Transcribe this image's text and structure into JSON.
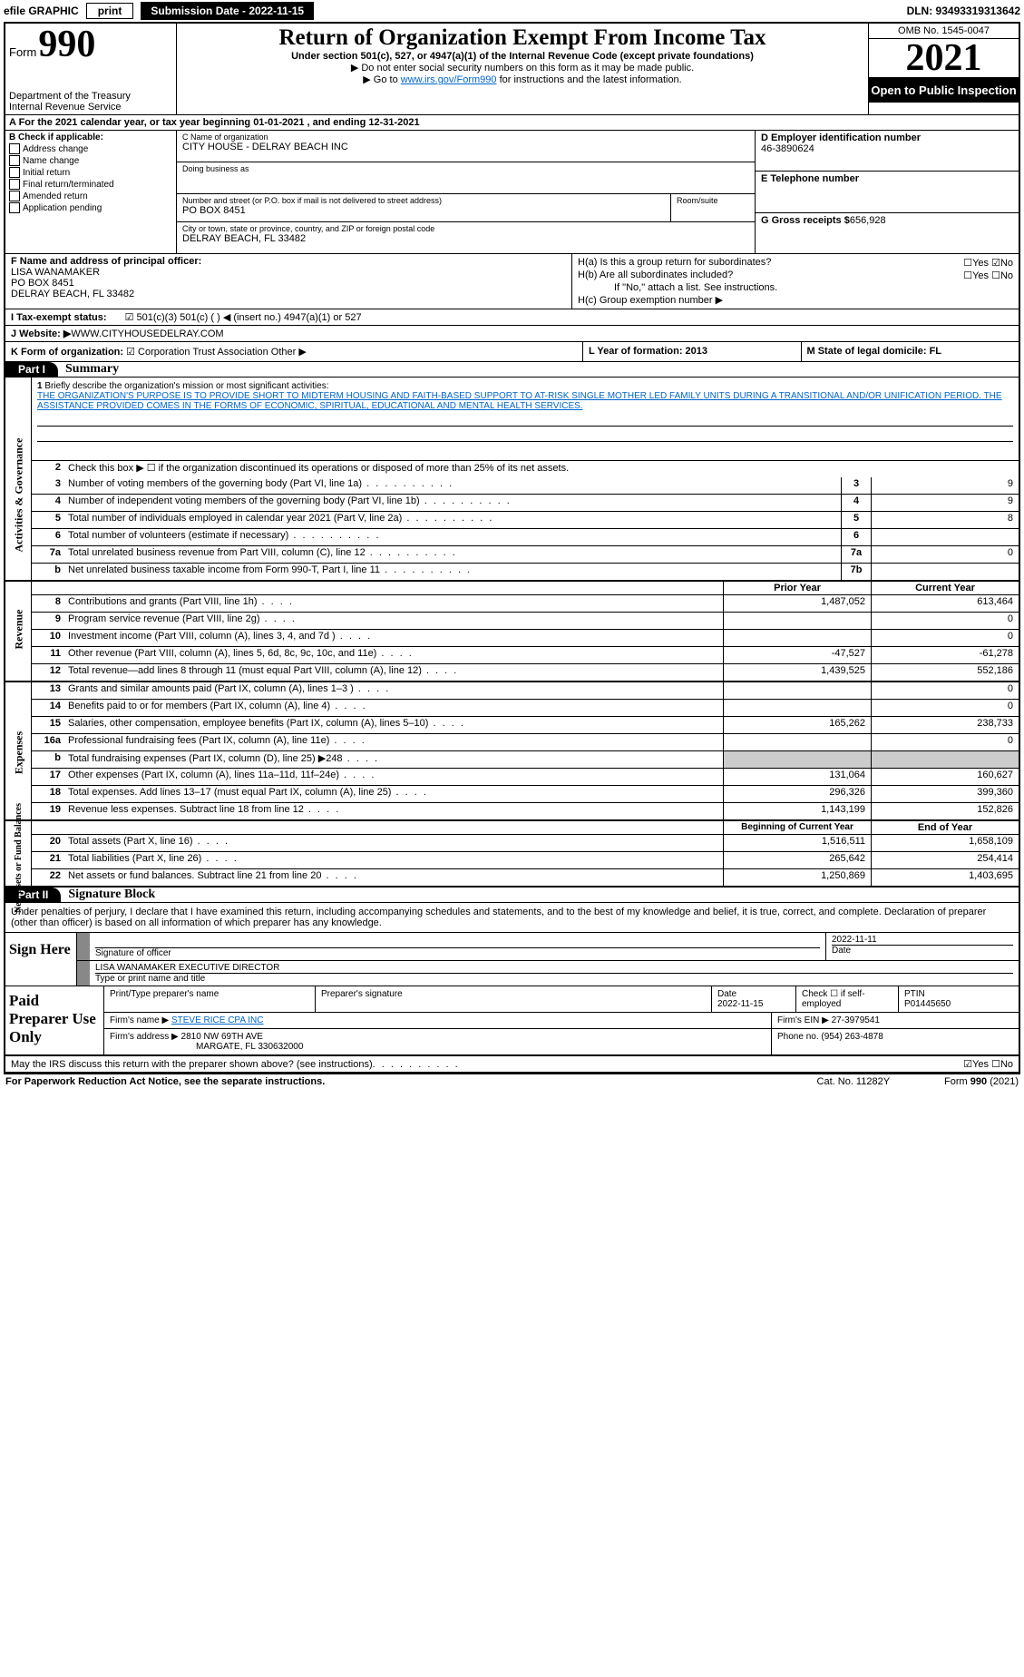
{
  "topbar": {
    "efile": "efile GRAPHIC",
    "print": "print",
    "submission": "Submission Date - 2022-11-15",
    "dln": "DLN: 93493319313642"
  },
  "header": {
    "form_word": "Form",
    "form_num": "990",
    "dept": "Department of the Treasury",
    "irs": "Internal Revenue Service",
    "title": "Return of Organization Exempt From Income Tax",
    "sub": "Under section 501(c), 527, or 4947(a)(1) of the Internal Revenue Code (except private foundations)",
    "note1": "▶ Do not enter social security numbers on this form as it may be made public.",
    "note2_pre": "▶ Go to ",
    "note2_link": "www.irs.gov/Form990",
    "note2_post": " for instructions and the latest information.",
    "omb": "OMB No. 1545-0047",
    "year": "2021",
    "open": "Open to Public Inspection"
  },
  "row_a": "A For the 2021 calendar year, or tax year beginning 01-01-2021     , and ending 12-31-2021",
  "col_b": {
    "header": "B Check if applicable:",
    "items": [
      "Address change",
      "Name change",
      "Initial return",
      "Final return/terminated",
      "Amended return",
      "Application pending"
    ]
  },
  "col_c": {
    "c_label": "C Name of organization",
    "c_val": "CITY HOUSE - DELRAY BEACH INC",
    "dba_label": "Doing business as",
    "addr_label": "Number and street (or P.O. box if mail is not delivered to street address)",
    "addr_val": "PO BOX 8451",
    "room_label": "Room/suite",
    "city_label": "City or town, state or province, country, and ZIP or foreign postal code",
    "city_val": "DELRAY BEACH, FL  33482"
  },
  "col_d": {
    "d_label": "D Employer identification number",
    "d_val": "46-3890624",
    "e_label": "E Telephone number",
    "g_label": "G Gross receipts $",
    "g_val": "656,928"
  },
  "col_f": {
    "label": "F  Name and address of principal officer:",
    "name": "LISA WANAMAKER",
    "addr1": "PO BOX 8451",
    "addr2": "DELRAY BEACH, FL  33482"
  },
  "col_h": {
    "ha": "H(a)  Is this a group return for subordinates?",
    "hb": "H(b)  Are all subordinates included?",
    "hb_note": "If \"No,\" attach a list. See instructions.",
    "hc": "H(c)  Group exemption number ▶",
    "yes": "Yes",
    "no": "No"
  },
  "row_i": {
    "label": "I     Tax-exempt status:",
    "opts": "501(c)(3)       501(c) (   ) ◀ (insert no.)        4947(a)(1) or        527"
  },
  "row_j": {
    "label": "J    Website: ▶",
    "val": " WWW.CITYHOUSEDELRAY.COM"
  },
  "row_k": {
    "label": "K Form of organization:",
    "opts": " Corporation     Trust     Association     Other ▶",
    "l": "L Year of formation: 2013",
    "m": "M State of legal domicile: FL"
  },
  "part1": {
    "label": "Part I",
    "title": "Summary"
  },
  "mission": {
    "num": "1",
    "label": "Briefly describe the organization's mission or most significant activities:",
    "text": "THE ORGANIZATION'S PURPOSE IS TO PROVIDE SHORT TO MIDTERM HOUSING AND FAITH-BASED SUPPORT TO AT-RISK SINGLE MOTHER LED FAMILY UNITS DURING A TRANSITIONAL AND/OR UNIFICATION PERIOD. THE ASSISTANCE PROVIDED COMES IN THE FORMS OF ECONOMIC, SPIRITUAL, EDUCATIONAL AND MENTAL HEALTH SERVICES."
  },
  "gov_rows": [
    {
      "n": "2",
      "t": "Check this box ▶ ☐ if the organization discontinued its operations or disposed of more than 25% of its net assets.",
      "box": "",
      "v": ""
    },
    {
      "n": "3",
      "t": "Number of voting members of the governing body (Part VI, line 1a)",
      "box": "3",
      "v": "9"
    },
    {
      "n": "4",
      "t": "Number of independent voting members of the governing body (Part VI, line 1b)",
      "box": "4",
      "v": "9"
    },
    {
      "n": "5",
      "t": "Total number of individuals employed in calendar year 2021 (Part V, line 2a)",
      "box": "5",
      "v": "8"
    },
    {
      "n": "6",
      "t": "Total number of volunteers (estimate if necessary)",
      "box": "6",
      "v": ""
    },
    {
      "n": "7a",
      "t": "Total unrelated business revenue from Part VIII, column (C), line 12",
      "box": "7a",
      "v": "0"
    },
    {
      "n": "b",
      "t": "Net unrelated business taxable income from Form 990-T, Part I, line 11",
      "box": "7b",
      "v": ""
    }
  ],
  "col_headers": {
    "prior": "Prior Year",
    "current": "Current Year"
  },
  "rev_rows": [
    {
      "n": "8",
      "t": "Contributions and grants (Part VIII, line 1h)",
      "p": "1,487,052",
      "c": "613,464"
    },
    {
      "n": "9",
      "t": "Program service revenue (Part VIII, line 2g)",
      "p": "",
      "c": "0"
    },
    {
      "n": "10",
      "t": "Investment income (Part VIII, column (A), lines 3, 4, and 7d )",
      "p": "",
      "c": "0"
    },
    {
      "n": "11",
      "t": "Other revenue (Part VIII, column (A), lines 5, 6d, 8c, 9c, 10c, and 11e)",
      "p": "-47,527",
      "c": "-61,278"
    },
    {
      "n": "12",
      "t": "Total revenue—add lines 8 through 11 (must equal Part VIII, column (A), line 12)",
      "p": "1,439,525",
      "c": "552,186"
    }
  ],
  "exp_rows": [
    {
      "n": "13",
      "t": "Grants and similar amounts paid (Part IX, column (A), lines 1–3 )",
      "p": "",
      "c": "0"
    },
    {
      "n": "14",
      "t": "Benefits paid to or for members (Part IX, column (A), line 4)",
      "p": "",
      "c": "0"
    },
    {
      "n": "15",
      "t": "Salaries, other compensation, employee benefits (Part IX, column (A), lines 5–10)",
      "p": "165,262",
      "c": "238,733"
    },
    {
      "n": "16a",
      "t": "Professional fundraising fees (Part IX, column (A), line 11e)",
      "p": "",
      "c": "0"
    },
    {
      "n": "b",
      "t": "Total fundraising expenses (Part IX, column (D), line 25) ▶248",
      "p": "grey",
      "c": "grey"
    },
    {
      "n": "17",
      "t": "Other expenses (Part IX, column (A), lines 11a–11d, 11f–24e)",
      "p": "131,064",
      "c": "160,627"
    },
    {
      "n": "18",
      "t": "Total expenses. Add lines 13–17 (must equal Part IX, column (A), line 25)",
      "p": "296,326",
      "c": "399,360"
    },
    {
      "n": "19",
      "t": "Revenue less expenses. Subtract line 18 from line 12",
      "p": "1,143,199",
      "c": "152,826"
    }
  ],
  "net_headers": {
    "begin": "Beginning of Current Year",
    "end": "End of Year"
  },
  "net_rows": [
    {
      "n": "20",
      "t": "Total assets (Part X, line 16)",
      "p": "1,516,511",
      "c": "1,658,109"
    },
    {
      "n": "21",
      "t": "Total liabilities (Part X, line 26)",
      "p": "265,642",
      "c": "254,414"
    },
    {
      "n": "22",
      "t": "Net assets or fund balances. Subtract line 21 from line 20",
      "p": "1,250,869",
      "c": "1,403,695"
    }
  ],
  "side_labels": {
    "gov": "Activities & Governance",
    "rev": "Revenue",
    "exp": "Expenses",
    "net": "Net Assets or Fund Balances"
  },
  "part2": {
    "label": "Part II",
    "title": "Signature Block",
    "penalty": "Under penalties of perjury, I declare that I have examined this return, including accompanying schedules and statements, and to the best of my knowledge and belief, it is true, correct, and complete. Declaration of preparer (other than officer) is based on all information of which preparer has any knowledge."
  },
  "sign": {
    "side": "Sign Here",
    "sig_label": "Signature of officer",
    "date_label": "Date",
    "date_val": "2022-11-11",
    "name": "LISA WANAMAKER  EXECUTIVE DIRECTOR",
    "name_label": "Type or print name and title"
  },
  "paid": {
    "side": "Paid Preparer Use Only",
    "h1": "Print/Type preparer's name",
    "h2": "Preparer's signature",
    "h3": "Date",
    "h3v": "2022-11-15",
    "h4": "Check ☐ if self-employed",
    "h5": "PTIN",
    "h5v": "P01445650",
    "firm_label": "Firm's name    ▶",
    "firm_val": "STEVE RICE CPA INC",
    "ein_label": "Firm's EIN ▶",
    "ein_val": "27-3979541",
    "addr_label": "Firm's address ▶",
    "addr_val": "2810 NW 69TH AVE",
    "addr_val2": "MARGATE, FL  330632000",
    "phone_label": "Phone no.",
    "phone_val": "(954) 263-4878"
  },
  "discuss": "May the IRS discuss this return with the preparer shown above? (see instructions)",
  "footer": {
    "left": "For Paperwork Reduction Act Notice, see the separate instructions.",
    "mid": "Cat. No. 11282Y",
    "right": "Form 990 (2021)"
  }
}
